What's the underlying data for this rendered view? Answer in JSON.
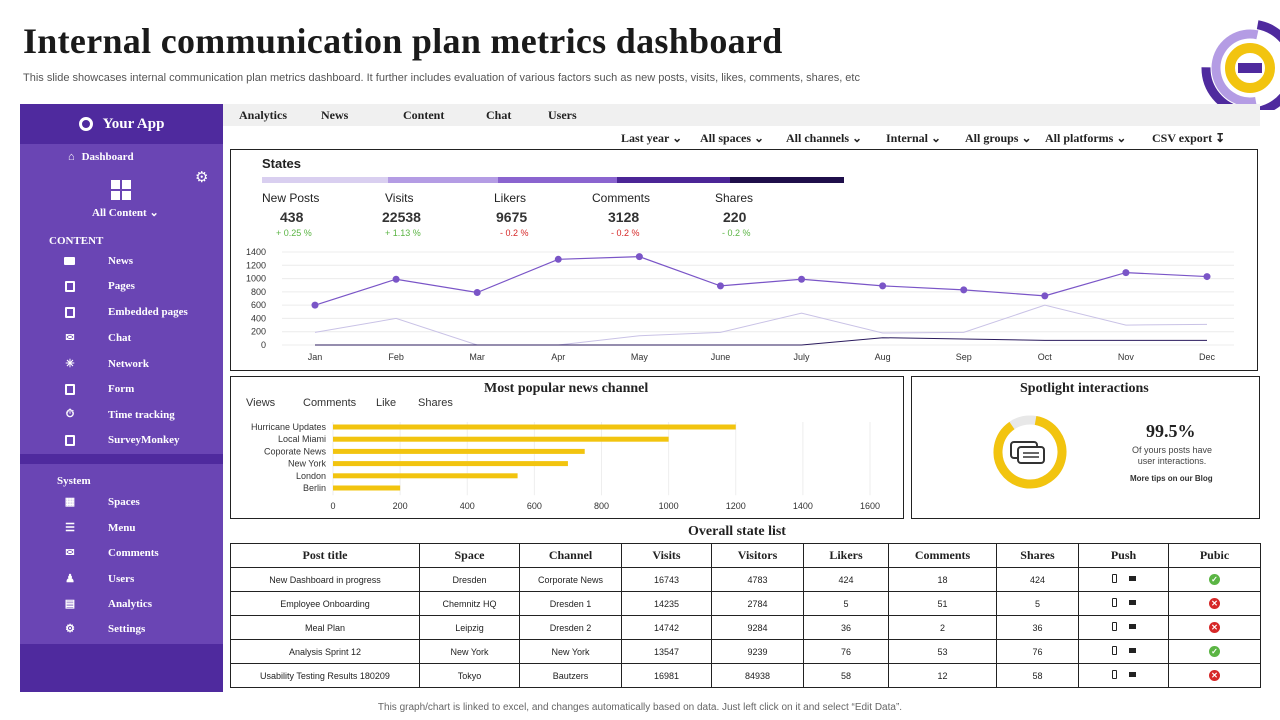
{
  "page": {
    "title": "Internal communication plan metrics dashboard",
    "subtitle": "This slide showcases internal communication plan metrics dashboard. It further includes evaluation of various factors such as new posts, visits, likes, comments, shares, etc",
    "footer": "This graph/chart is linked to excel, and changes automatically based on data. Just left click on it and select “Edit Data”."
  },
  "sidebar": {
    "app_name": "Your App",
    "dashboard_label": "Dashboard",
    "all_content_label": "All Content",
    "content_heading": "CONTENT",
    "content_items": [
      {
        "label": "News",
        "icon": "newspaper-icon"
      },
      {
        "label": "Pages",
        "icon": "document-icon"
      },
      {
        "label": "Embedded pages",
        "icon": "embedded-page-icon"
      },
      {
        "label": "Chat",
        "icon": "chat-icon"
      },
      {
        "label": "Network",
        "icon": "network-icon"
      },
      {
        "label": "Form",
        "icon": "form-icon"
      },
      {
        "label": "Time tracking",
        "icon": "stopwatch-icon"
      },
      {
        "label": "SurveyMonkey",
        "icon": "survey-icon"
      }
    ],
    "system_heading": "System",
    "system_items": [
      {
        "label": "Spaces",
        "icon": "windows-icon"
      },
      {
        "label": "Menu",
        "icon": "menu-icon"
      },
      {
        "label": "Comments",
        "icon": "comments-icon"
      },
      {
        "label": "Users",
        "icon": "users-icon"
      },
      {
        "label": "Analytics",
        "icon": "analytics-icon"
      },
      {
        "label": "Settings",
        "icon": "gear-icon"
      }
    ]
  },
  "topnav": {
    "tabs": [
      "Analytics",
      "News",
      "Content",
      "Chat",
      "Users"
    ]
  },
  "filters": [
    "Last year",
    "All spaces",
    "All channels",
    "Internal",
    "All groups",
    "All platforms",
    "CSV export"
  ],
  "states": {
    "title": "States",
    "strip_colors": [
      "#d9cff0",
      "#b49ce4",
      "#8a64cf",
      "#4b2596",
      "#1f0f4a"
    ],
    "stats": [
      {
        "label": "New Posts",
        "value": "438",
        "change": "+ 0.25 %",
        "color": "#5bb544"
      },
      {
        "label": "Visits",
        "value": "22538",
        "change": "+ 1.13 %",
        "color": "#5bb544"
      },
      {
        "label": "Likers",
        "value": "9675",
        "change": "- 0.2 %",
        "color": "#d62828"
      },
      {
        "label": "Comments",
        "value": "3128",
        "change": "- 0.2 %",
        "color": "#d62828"
      },
      {
        "label": "Shares",
        "value": "220",
        "change": "- 0.2 %",
        "color": "#5bb544"
      }
    ]
  },
  "news_panel": {
    "title": "Most popular news channel",
    "tabs": [
      "Views",
      "Comments",
      "Like",
      "Shares"
    ]
  },
  "spotlight": {
    "title": "Spotlight interactions",
    "percent": "99.5%",
    "percent_value": 99.5,
    "description": "Of yours posts have user interactions.",
    "link": "More tips on our Blog"
  },
  "table": {
    "title": "Overall state list",
    "columns": [
      "Post title",
      "Space",
      "Channel",
      "Visits",
      "Visitors",
      "Likers",
      "Comments",
      "Shares",
      "Push",
      "Pubic"
    ],
    "rows": [
      {
        "cells": [
          "New Dashboard in progress",
          "Dresden",
          "Corporate News",
          "16743",
          "4783",
          "424",
          "18",
          "424"
        ],
        "public": true
      },
      {
        "cells": [
          "Employee Onboarding",
          "Chemnitz HQ",
          "Dresden 1",
          "14235",
          "2784",
          "5",
          "51",
          "5"
        ],
        "public": false
      },
      {
        "cells": [
          "Meal Plan",
          "Leipzig",
          "Dresden 2",
          "14742",
          "9284",
          "36",
          "2",
          "36"
        ],
        "public": false
      },
      {
        "cells": [
          "Analysis Sprint 12",
          "New York",
          "New York",
          "13547",
          "9239",
          "76",
          "53",
          "76"
        ],
        "public": true
      },
      {
        "cells": [
          "Usability Testing Results 180209",
          "Tokyo",
          "Bautzers",
          "16981",
          "84938",
          "58",
          "12",
          "58"
        ],
        "public": false
      }
    ]
  },
  "chart_data": [
    {
      "type": "line",
      "categories": [
        "Jan",
        "Feb",
        "Mar",
        "Apr",
        "May",
        "June",
        "July",
        "Aug",
        "Sep",
        "Oct",
        "Nov",
        "Dec"
      ],
      "ylim": [
        0,
        1400
      ],
      "yticks": [
        0,
        200,
        400,
        600,
        800,
        1000,
        1200,
        1400
      ],
      "grid": true,
      "series": [
        {
          "values": [
            600,
            990,
            790,
            1290,
            1330,
            890,
            990,
            890,
            830,
            740,
            1090,
            1030
          ],
          "color": "#7a55c7",
          "markers": true
        },
        {
          "values": [
            190,
            400,
            0,
            0,
            140,
            190,
            480,
            180,
            190,
            600,
            300,
            310
          ],
          "color": "#c9c2e6",
          "markers": false
        },
        {
          "values": [
            0,
            0,
            0,
            0,
            0,
            0,
            0,
            110,
            90,
            70,
            70,
            70
          ],
          "color": "#2b1b5e",
          "markers": false
        }
      ]
    },
    {
      "type": "bar",
      "orientation": "horizontal",
      "categories": [
        "Hurricane Updates",
        "Local Miami",
        "Coporate News",
        "New York",
        "London",
        "Berlin"
      ],
      "values": [
        1200,
        1000,
        750,
        700,
        550,
        200
      ],
      "xlim": [
        0,
        1600
      ],
      "xticks": [
        0,
        200,
        400,
        600,
        800,
        1000,
        1200,
        1400,
        1600
      ],
      "color": "#f2c40f",
      "grid": true
    }
  ]
}
